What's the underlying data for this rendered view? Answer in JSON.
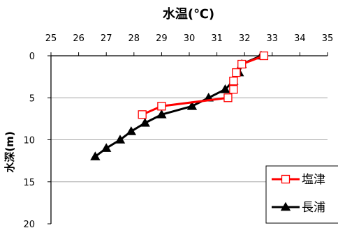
{
  "chart_data": {
    "type": "line",
    "title": "水温(℃)",
    "xlabel": "",
    "ylabel": "水深(m)",
    "x_axis_position": "top",
    "y_axis_inverted": true,
    "xlim": [
      25,
      35
    ],
    "ylim": [
      0,
      20
    ],
    "x_ticks": [
      25,
      26,
      27,
      28,
      29,
      30,
      31,
      32,
      33,
      34,
      35
    ],
    "y_ticks": [
      0,
      5,
      10,
      15,
      20
    ],
    "grid": "horizontal",
    "legend_position": "bottom-right",
    "series": [
      {
        "name": "塩津",
        "color": "#ff0000",
        "marker": "open-square",
        "points": [
          {
            "temp": 32.7,
            "depth": 0
          },
          {
            "temp": 31.9,
            "depth": 1
          },
          {
            "temp": 31.7,
            "depth": 2
          },
          {
            "temp": 31.6,
            "depth": 3
          },
          {
            "temp": 31.6,
            "depth": 4
          },
          {
            "temp": 31.4,
            "depth": 5
          },
          {
            "temp": 29.0,
            "depth": 6
          },
          {
            "temp": 28.3,
            "depth": 7
          }
        ]
      },
      {
        "name": "長浦",
        "color": "#000000",
        "marker": "filled-triangle",
        "points": [
          {
            "temp": 32.6,
            "depth": 0
          },
          {
            "temp": 31.9,
            "depth": 1
          },
          {
            "temp": 31.8,
            "depth": 2
          },
          {
            "temp": 31.6,
            "depth": 3
          },
          {
            "temp": 31.3,
            "depth": 4
          },
          {
            "temp": 30.7,
            "depth": 5
          },
          {
            "temp": 30.1,
            "depth": 6
          },
          {
            "temp": 29.0,
            "depth": 7
          },
          {
            "temp": 28.4,
            "depth": 8
          },
          {
            "temp": 27.9,
            "depth": 9
          },
          {
            "temp": 27.5,
            "depth": 10
          },
          {
            "temp": 27.0,
            "depth": 11
          },
          {
            "temp": 26.6,
            "depth": 12
          }
        ]
      }
    ]
  }
}
